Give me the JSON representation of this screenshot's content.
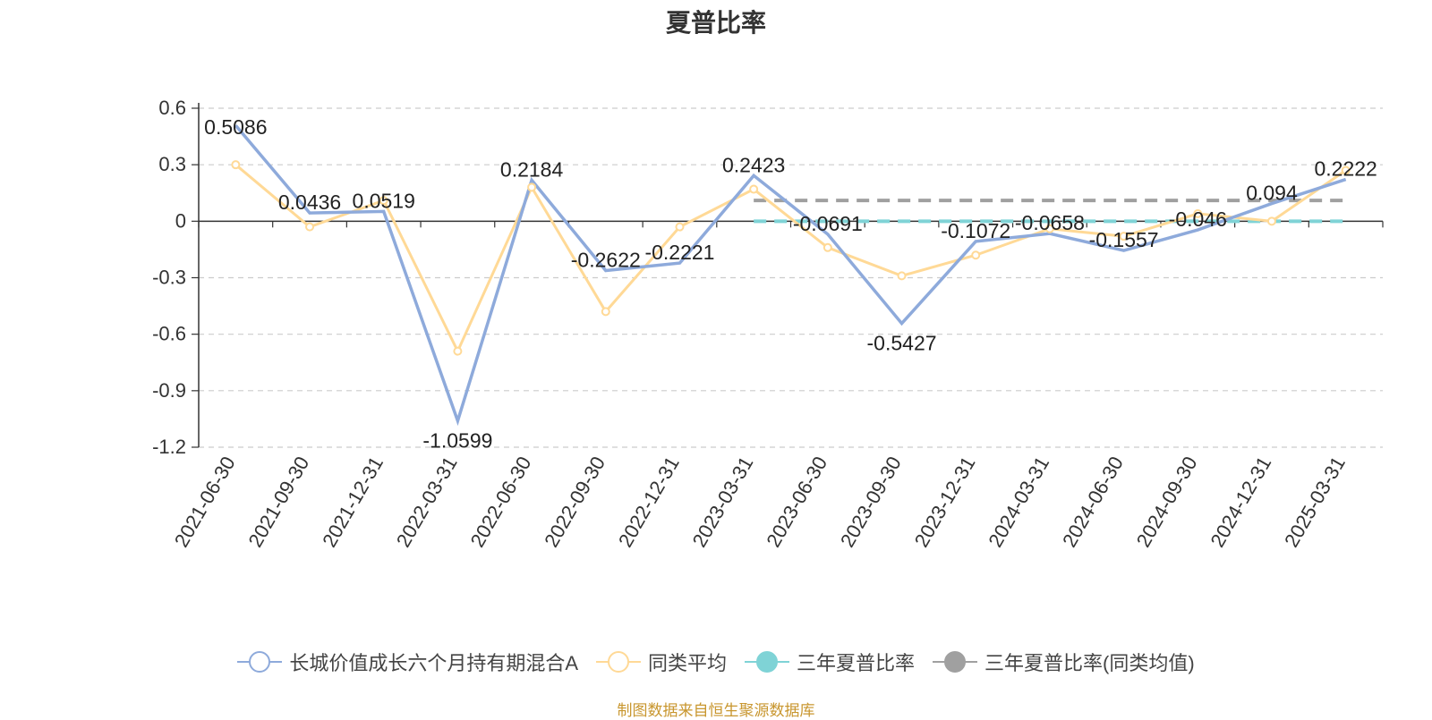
{
  "title": "夏普比率",
  "source_note": "制图数据来自恒生聚源数据库",
  "colors": {
    "fund": "#8eaadb",
    "peer": "#ffd996",
    "three_year": "#7fd3d6",
    "three_year_peer": "#a0a0a0",
    "source": "#c8962e"
  },
  "legend": [
    {
      "label": "长城价值成长六个月持有期混合A",
      "color": "#8eaadb",
      "hollow": true
    },
    {
      "label": "同类平均",
      "color": "#ffd996",
      "hollow": true
    },
    {
      "label": "三年夏普比率",
      "color": "#7fd3d6",
      "hollow": false
    },
    {
      "label": "三年夏普比率(同类均值)",
      "color": "#a0a0a0",
      "hollow": false
    }
  ],
  "chart_data": {
    "type": "line",
    "title": "夏普比率",
    "categories": [
      "2021-06-30",
      "2021-09-30",
      "2021-12-31",
      "2022-03-31",
      "2022-06-30",
      "2022-09-30",
      "2022-12-31",
      "2023-03-31",
      "2023-06-30",
      "2023-09-30",
      "2023-12-31",
      "2024-03-31",
      "2024-06-30",
      "2024-09-30",
      "2024-12-31",
      "2025-03-31"
    ],
    "yticks": [
      0.6,
      0.3,
      0,
      -0.3,
      -0.6,
      -0.9,
      -1.2
    ],
    "ylim": [
      -1.2,
      0.6
    ],
    "grid": true,
    "legend_position": "bottom",
    "series": [
      {
        "name": "长城价值成长六个月持有期混合A",
        "values": [
          0.5086,
          0.0436,
          0.0519,
          -1.0599,
          0.2184,
          -0.2622,
          -0.2221,
          0.2423,
          -0.0691,
          -0.5427,
          -0.1072,
          -0.0658,
          -0.1557,
          -0.046,
          0.094,
          0.2222
        ],
        "labels": [
          "0.5086",
          "0.0436",
          "0.0519",
          "-1.0599",
          "0.2184",
          "-0.2622",
          "-0.2221",
          "0.2423",
          "-0.0691",
          "-0.5427",
          "-0.1072",
          "-0.0658",
          "-0.1557",
          "-0.046",
          "0.094",
          "0.2222"
        ],
        "show_markers": false
      },
      {
        "name": "同类平均",
        "values": [
          0.3,
          -0.03,
          0.11,
          -0.69,
          0.18,
          -0.48,
          -0.03,
          0.17,
          -0.14,
          -0.29,
          -0.18,
          -0.04,
          -0.08,
          0.04,
          0.0,
          0.27
        ],
        "show_markers": true
      },
      {
        "name": "三年夏普比率",
        "x_start": "2023-03-31",
        "x_end": "2025-03-31",
        "value": 0.0,
        "style": "dashed"
      },
      {
        "name": "三年夏普比率(同类均值)",
        "x_start": "2023-03-31",
        "x_end": "2025-03-31",
        "value": 0.11,
        "style": "dashed"
      }
    ]
  }
}
